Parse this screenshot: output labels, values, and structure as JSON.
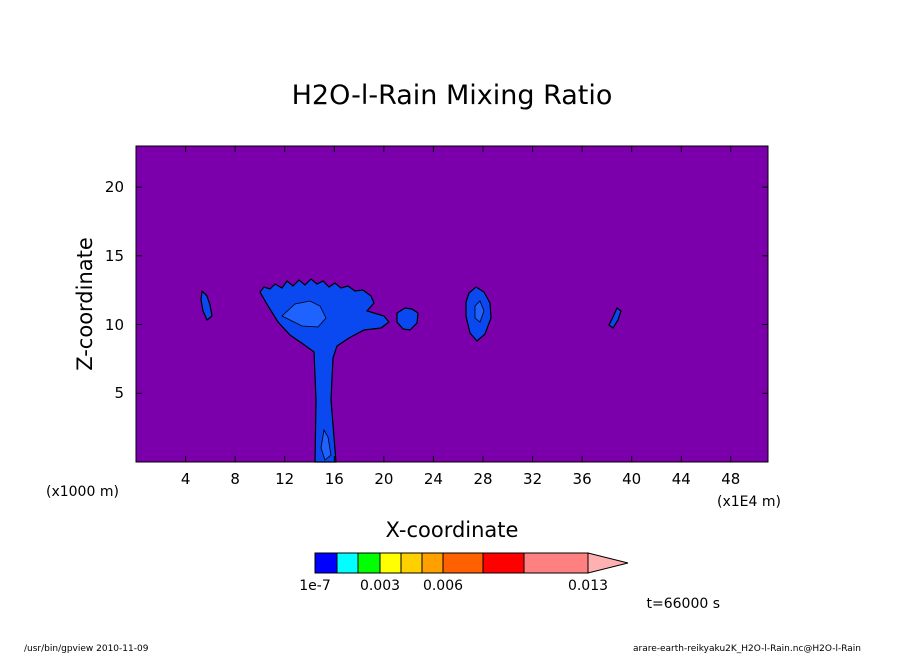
{
  "chart_data": {
    "type": "heatmap",
    "title": "H2O-l-Rain Mixing Ratio",
    "xlabel": "X-coordinate",
    "ylabel": "Z-coordinate",
    "x_unit_label": "(x1E4 m)",
    "y_unit_label": "(x1000 m)",
    "xlim": [
      0,
      51
    ],
    "ylim": [
      0,
      23
    ],
    "x_ticks": [
      "4",
      "8",
      "12",
      "16",
      "20",
      "24",
      "28",
      "32",
      "36",
      "40",
      "44",
      "48"
    ],
    "y_ticks": [
      "5",
      "10",
      "15",
      "20"
    ],
    "background_color": "#7b00ab",
    "colorbar": {
      "colors": [
        "#0000ff",
        "#00ffff",
        "#00ff00",
        "#ffff00",
        "#ffd000",
        "#ffa000",
        "#ff6000",
        "#ff0000",
        "#ff8080",
        "#ffb0b0"
      ],
      "labels": [
        "1e-7",
        "0.003",
        "0.006",
        "0.013"
      ]
    },
    "time_label": "t=66000 s",
    "footer_left": "/usr/bin/gpview  2010-11-09",
    "footer_right": "arare-earth-reikyaku2K_H2O-l-Rain.nc@H2O-l-Rain"
  }
}
